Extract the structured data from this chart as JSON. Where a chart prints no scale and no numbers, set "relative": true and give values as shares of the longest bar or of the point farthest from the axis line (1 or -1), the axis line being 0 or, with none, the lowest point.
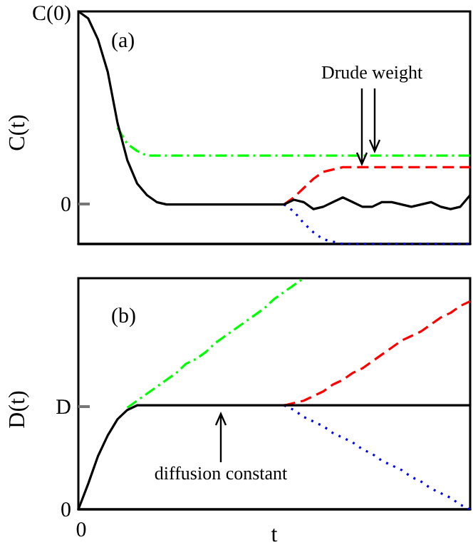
{
  "chart_data": [
    {
      "type": "line",
      "ylabel": "C(t)",
      "relative": true,
      "categories": [
        null,
        null,
        null,
        null,
        null,
        null,
        null,
        null,
        null,
        null,
        null,
        null,
        null,
        null,
        null,
        null,
        null,
        null,
        null,
        null,
        null,
        null,
        null,
        null,
        null,
        null,
        null,
        null,
        null,
        null,
        null,
        null,
        null,
        null,
        null,
        null,
        null,
        null,
        null,
        null,
        null
      ],
      "tick_labels": false,
      "grid": false,
      "annotations": [
        "(a)",
        "C(0)",
        "0",
        "Drude weight"
      ],
      "series": [
        {
          "color": "#00ff00",
          "line_style": "dashdot",
          "values": [
            null,
            null,
            null,
            null,
            0.5,
            0.43,
            0.4,
            0.38,
            0.38,
            0.38,
            0.38,
            0.38,
            0.38,
            0.38,
            0.38,
            0.38,
            0.38,
            0.38,
            0.38,
            0.38,
            0.38,
            0.38,
            0.38,
            0.38,
            0.38,
            0.38,
            0.38,
            0.38,
            0.38,
            0.38,
            0.38,
            0.38,
            0.38,
            0.38,
            0.38,
            0.38,
            0.38,
            0.38,
            0.38,
            0.38,
            0.38
          ]
        },
        {
          "color": "#ff0000",
          "line_style": "dashed",
          "values": [
            null,
            null,
            null,
            null,
            null,
            null,
            null,
            null,
            null,
            null,
            null,
            null,
            null,
            null,
            null,
            null,
            null,
            null,
            null,
            null,
            null,
            0.17,
            0.2,
            0.24,
            0.28,
            0.31,
            0.32,
            0.33,
            0.33,
            0.33,
            0.33,
            0.33,
            0.33,
            0.33,
            0.33,
            0.33,
            0.33,
            0.33,
            0.33,
            0.33,
            0.33
          ]
        },
        {
          "color": "#0000ff",
          "line_style": "dotted",
          "values": [
            null,
            null,
            null,
            null,
            null,
            null,
            null,
            null,
            null,
            null,
            null,
            null,
            null,
            null,
            null,
            null,
            null,
            null,
            null,
            null,
            null,
            0.17,
            0.14,
            0.09,
            0.05,
            0.02,
            0.01,
            0,
            0,
            0,
            0,
            0,
            0,
            0,
            0,
            0,
            0,
            0,
            0,
            0,
            0
          ]
        },
        {
          "color": "#000000",
          "line_style": "solid",
          "values": [
            1,
            0.97,
            0.88,
            0.74,
            0.52,
            0.36,
            0.26,
            0.21,
            0.18,
            0.17,
            0.17,
            0.17,
            0.17,
            0.17,
            0.17,
            0.17,
            0.17,
            0.17,
            0.17,
            0.17,
            0.17,
            0.17,
            0.19,
            0.18,
            0.15,
            0.16,
            0.18,
            0.2,
            0.18,
            0.16,
            0.16,
            0.18,
            0.18,
            0.17,
            0.16,
            0.17,
            0.18,
            0.16,
            0.15,
            0.16,
            0.21
          ]
        }
      ]
    },
    {
      "type": "line",
      "xlabel": "t",
      "ylabel": "D(t)",
      "relative": true,
      "categories": [
        null,
        null,
        null,
        null,
        null,
        null,
        null,
        null,
        null,
        null,
        null,
        null,
        null,
        null,
        null,
        null,
        null,
        null,
        null,
        null,
        null,
        null,
        null,
        null,
        null,
        null,
        null,
        null,
        null,
        null,
        null,
        null,
        null,
        null,
        null,
        null,
        null,
        null,
        null,
        null,
        null
      ],
      "tick_labels": false,
      "grid": false,
      "annotations": [
        "(b)",
        "D",
        "0",
        "0",
        "diffusion constant"
      ],
      "series": [
        {
          "color": "#00ff00",
          "line_style": "dashdot",
          "values": [
            null,
            null,
            null,
            null,
            null,
            0.44,
            0.47,
            0.5,
            0.53,
            0.56,
            0.59,
            0.63,
            0.65,
            0.68,
            0.72,
            0.75,
            0.78,
            0.81,
            0.84,
            0.87,
            0.91,
            0.94,
            0.97,
            1,
            null,
            null,
            null,
            null,
            null,
            null,
            null,
            null,
            null,
            null,
            null,
            null,
            null,
            null,
            null,
            null,
            null
          ]
        },
        {
          "color": "#ff0000",
          "line_style": "dashed",
          "values": [
            null,
            null,
            null,
            null,
            null,
            null,
            null,
            null,
            null,
            null,
            null,
            null,
            null,
            null,
            null,
            null,
            null,
            null,
            null,
            null,
            null,
            0.45,
            0.46,
            0.47,
            0.49,
            0.51,
            0.54,
            0.56,
            0.59,
            0.61,
            0.64,
            0.67,
            0.7,
            0.73,
            0.75,
            0.77,
            0.8,
            0.83,
            0.85,
            0.88,
            0.9
          ]
        },
        {
          "color": "#0000ff",
          "line_style": "dotted",
          "values": [
            null,
            null,
            null,
            null,
            null,
            null,
            null,
            null,
            null,
            null,
            null,
            null,
            null,
            null,
            null,
            null,
            null,
            null,
            null,
            null,
            null,
            0.45,
            0.43,
            0.4,
            0.38,
            0.36,
            0.33,
            0.31,
            0.29,
            0.26,
            0.24,
            0.21,
            0.19,
            0.17,
            0.14,
            0.12,
            0.09,
            0.07,
            0.05,
            0.02,
            0
          ]
        },
        {
          "color": "#000000",
          "line_style": "solid",
          "values": [
            0,
            0.11,
            0.23,
            0.32,
            0.39,
            0.43,
            0.45,
            0.45,
            0.45,
            0.45,
            0.45,
            0.45,
            0.45,
            0.45,
            0.45,
            0.45,
            0.45,
            0.45,
            0.45,
            0.45,
            0.45,
            0.45,
            0.45,
            0.45,
            0.45,
            0.45,
            0.45,
            0.45,
            0.45,
            0.45,
            0.45,
            0.45,
            0.45,
            0.45,
            0.45,
            0.45,
            0.45,
            0.45,
            0.45,
            0.45,
            0.45
          ]
        }
      ]
    }
  ]
}
